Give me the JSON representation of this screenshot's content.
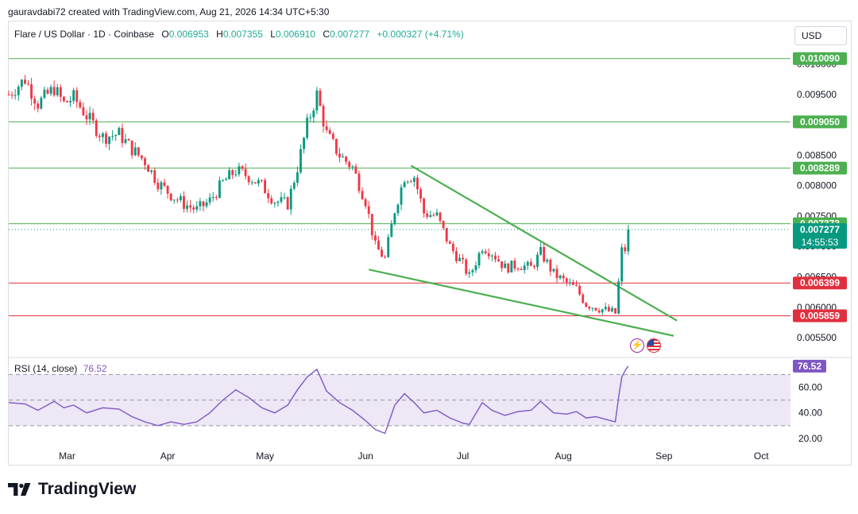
{
  "header": {
    "attribution": "gauravdabi72 created with TradingView.com, Aug 21, 2026 14:34 UTC+5:30",
    "symbol": "Flare / US Dollar · 1D · Coinbase",
    "ohlc": {
      "o_label": "O",
      "o": "0.006953",
      "h_label": "H",
      "h": "0.007355",
      "l_label": "L",
      "l": "0.006910",
      "c_label": "C",
      "c": "0.007277",
      "change": "+0.000327 (+4.71%)"
    },
    "currency_button": "USD"
  },
  "rsi_panel": {
    "label": "RSI (14, close)",
    "value": "76.52",
    "color": "#7e57c2"
  },
  "colors": {
    "up": "#089981",
    "down": "#f23645",
    "support": "#e0303f",
    "resistance": "#4caf50",
    "trendline": "#4caf50",
    "rsi_line": "#7e57c2",
    "rsi_band": "#ede7f6"
  },
  "brand": {
    "name": "TradingView"
  },
  "icons": [
    "lightning-icon",
    "us-flag-icon"
  ],
  "chart_data": [
    {
      "type": "candlestick",
      "title": "Flare / US Dollar · 1D · Coinbase",
      "x_ticks": [
        "Mar",
        "Apr",
        "May",
        "Jun",
        "Jul",
        "Aug",
        "Sep",
        "Oct"
      ],
      "y_ticks": [
        "0.005500",
        "0.006000",
        "0.006500",
        "0.007000",
        "0.007500",
        "0.008000",
        "0.008500",
        "0.009500",
        "0.010000"
      ],
      "ylim": [
        0.0052,
        0.0104
      ],
      "xlim": [
        "2026-02-11",
        "2026-10-10"
      ],
      "grid": false,
      "horizontal_levels": [
        {
          "value": "0.010090",
          "kind": "resistance"
        },
        {
          "value": "0.009050",
          "kind": "resistance"
        },
        {
          "value": "0.008289",
          "kind": "resistance"
        },
        {
          "value": "0.007373",
          "kind": "resistance"
        },
        {
          "value": "0.006399",
          "kind": "support"
        },
        {
          "value": "0.005859",
          "kind": "support"
        }
      ],
      "last_price": {
        "value": "0.007277",
        "countdown": "14:55:53"
      },
      "trendlines": [
        {
          "from": [
            "2026-06-15",
            0.00833
          ],
          "to": [
            "2026-09-05",
            0.00578
          ]
        },
        {
          "from": [
            "2026-06-02",
            0.00662
          ],
          "to": [
            "2026-09-04",
            0.00553
          ]
        }
      ],
      "close_series": [
        [
          "2026-02-11",
          0.0095
        ],
        [
          "2026-02-16",
          0.00975
        ],
        [
          "2026-02-20",
          0.00935
        ],
        [
          "2026-02-25",
          0.0096
        ],
        [
          "2026-02-28",
          0.00935
        ],
        [
          "2026-03-03",
          0.00945
        ],
        [
          "2026-03-07",
          0.00915
        ],
        [
          "2026-03-12",
          0.0088
        ],
        [
          "2026-03-17",
          0.00885
        ],
        [
          "2026-03-21",
          0.0086
        ],
        [
          "2026-03-25",
          0.0084
        ],
        [
          "2026-03-29",
          0.00805
        ],
        [
          "2026-04-02",
          0.00785
        ],
        [
          "2026-04-06",
          0.0077
        ],
        [
          "2026-04-10",
          0.0076
        ],
        [
          "2026-04-14",
          0.00775
        ],
        [
          "2026-04-18",
          0.00805
        ],
        [
          "2026-04-22",
          0.00825
        ],
        [
          "2026-04-26",
          0.00815
        ],
        [
          "2026-04-30",
          0.008
        ],
        [
          "2026-05-04",
          0.00775
        ],
        [
          "2026-05-08",
          0.0077
        ],
        [
          "2026-05-11",
          0.0083
        ],
        [
          "2026-05-14",
          0.009
        ],
        [
          "2026-05-17",
          0.0095
        ],
        [
          "2026-05-20",
          0.00885
        ],
        [
          "2026-05-24",
          0.0085
        ],
        [
          "2026-05-28",
          0.0083
        ],
        [
          "2026-06-01",
          0.00775
        ],
        [
          "2026-06-04",
          0.007
        ],
        [
          "2026-06-07",
          0.0068
        ],
        [
          "2026-06-10",
          0.0076
        ],
        [
          "2026-06-13",
          0.00815
        ],
        [
          "2026-06-16",
          0.00815
        ],
        [
          "2026-06-19",
          0.00755
        ],
        [
          "2026-06-23",
          0.0075
        ],
        [
          "2026-06-27",
          0.007
        ],
        [
          "2026-07-01",
          0.0067
        ],
        [
          "2026-07-03",
          0.0065
        ],
        [
          "2026-07-07",
          0.007
        ],
        [
          "2026-07-10",
          0.0069
        ],
        [
          "2026-07-14",
          0.00665
        ],
        [
          "2026-07-18",
          0.0067
        ],
        [
          "2026-07-22",
          0.00665
        ],
        [
          "2026-07-25",
          0.0069
        ],
        [
          "2026-07-29",
          0.00655
        ],
        [
          "2026-08-02",
          0.0064
        ],
        [
          "2026-08-05",
          0.0063
        ],
        [
          "2026-08-08",
          0.00605
        ],
        [
          "2026-08-11",
          0.006
        ],
        [
          "2026-08-14",
          0.00595
        ],
        [
          "2026-08-17",
          0.0059
        ],
        [
          "2026-08-18",
          0.0064
        ],
        [
          "2026-08-19",
          0.00693
        ],
        [
          "2026-08-20",
          0.00695
        ],
        [
          "2026-08-21",
          0.007277
        ]
      ]
    },
    {
      "type": "line",
      "title": "RSI (14, close)",
      "y_ticks": [
        "20.00",
        "40.00",
        "60.00"
      ],
      "ylim": [
        15,
        82
      ],
      "bands": [
        30,
        50,
        70
      ],
      "series": [
        {
          "name": "RSI (14, close)",
          "points": [
            [
              "2026-02-11",
              48
            ],
            [
              "2026-02-16",
              47
            ],
            [
              "2026-02-20",
              42
            ],
            [
              "2026-02-25",
              49
            ],
            [
              "2026-02-28",
              44
            ],
            [
              "2026-03-03",
              46
            ],
            [
              "2026-03-07",
              40
            ],
            [
              "2026-03-12",
              44
            ],
            [
              "2026-03-17",
              43
            ],
            [
              "2026-03-21",
              37
            ],
            [
              "2026-03-25",
              33
            ],
            [
              "2026-03-29",
              30
            ],
            [
              "2026-04-02",
              33
            ],
            [
              "2026-04-06",
              31
            ],
            [
              "2026-04-10",
              33
            ],
            [
              "2026-04-14",
              40
            ],
            [
              "2026-04-18",
              50
            ],
            [
              "2026-04-22",
              58
            ],
            [
              "2026-04-26",
              52
            ],
            [
              "2026-04-30",
              44
            ],
            [
              "2026-05-04",
              40
            ],
            [
              "2026-05-08",
              46
            ],
            [
              "2026-05-11",
              58
            ],
            [
              "2026-05-14",
              68
            ],
            [
              "2026-05-17",
              74
            ],
            [
              "2026-05-20",
              57
            ],
            [
              "2026-05-24",
              48
            ],
            [
              "2026-05-28",
              42
            ],
            [
              "2026-06-01",
              34
            ],
            [
              "2026-06-04",
              27
            ],
            [
              "2026-06-07",
              24
            ],
            [
              "2026-06-10",
              46
            ],
            [
              "2026-06-13",
              55
            ],
            [
              "2026-06-16",
              48
            ],
            [
              "2026-06-19",
              40
            ],
            [
              "2026-06-23",
              42
            ],
            [
              "2026-06-27",
              36
            ],
            [
              "2026-07-01",
              32
            ],
            [
              "2026-07-03",
              31
            ],
            [
              "2026-07-07",
              48
            ],
            [
              "2026-07-10",
              42
            ],
            [
              "2026-07-14",
              38
            ],
            [
              "2026-07-18",
              41
            ],
            [
              "2026-07-22",
              42
            ],
            [
              "2026-07-25",
              49
            ],
            [
              "2026-07-29",
              40
            ],
            [
              "2026-08-02",
              39
            ],
            [
              "2026-08-05",
              41
            ],
            [
              "2026-08-08",
              36
            ],
            [
              "2026-08-11",
              37
            ],
            [
              "2026-08-14",
              35
            ],
            [
              "2026-08-17",
              33
            ],
            [
              "2026-08-18",
              52
            ],
            [
              "2026-08-19",
              68
            ],
            [
              "2026-08-20",
              73
            ],
            [
              "2026-08-21",
              76.52
            ]
          ]
        }
      ]
    }
  ]
}
